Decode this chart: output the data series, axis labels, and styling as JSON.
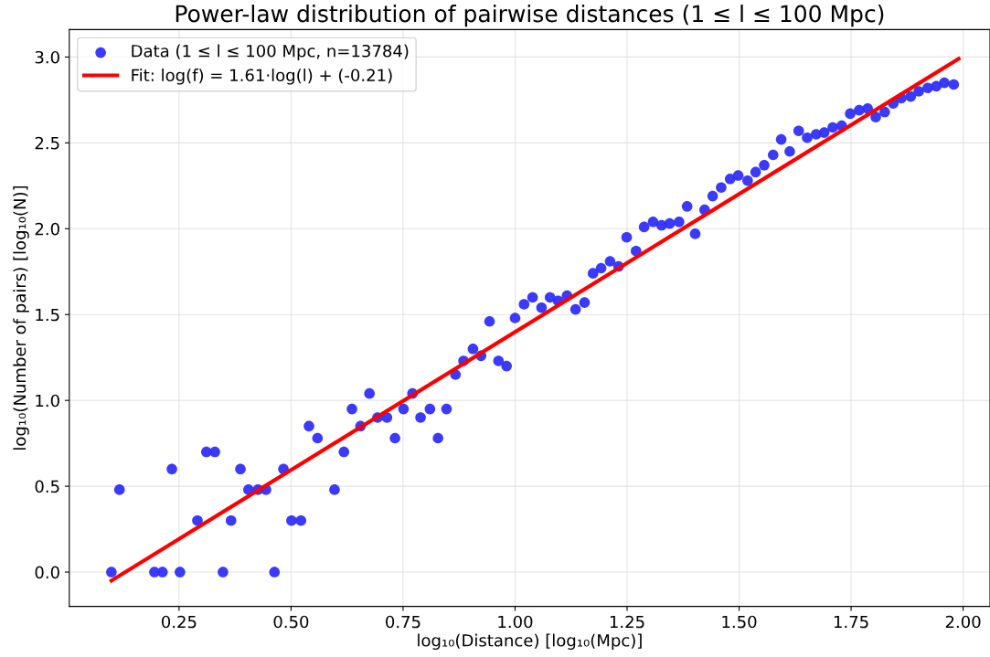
{
  "chart_data": {
    "type": "scatter",
    "title": "Power-law distribution of pairwise distances (1 ≤ l ≤ 100 Mpc)",
    "xlabel": "log₁₀(Distance) [log₁₀(Mpc)]",
    "ylabel": "log₁₀(Number of pairs) [log₁₀(N)]",
    "xlim": [
      0.005,
      2.06
    ],
    "ylim": [
      -0.2,
      3.16
    ],
    "xticks": [
      {
        "value": 0.25,
        "label": "0.25"
      },
      {
        "value": 0.5,
        "label": "0.50"
      },
      {
        "value": 0.75,
        "label": "0.75"
      },
      {
        "value": 1.0,
        "label": "1.00"
      },
      {
        "value": 1.25,
        "label": "1.25"
      },
      {
        "value": 1.5,
        "label": "1.50"
      },
      {
        "value": 1.75,
        "label": "1.75"
      },
      {
        "value": 2.0,
        "label": "2.00"
      }
    ],
    "yticks": [
      {
        "value": 0,
        "label": "0.0"
      },
      {
        "value": 0.5,
        "label": "0.5"
      },
      {
        "value": 1.0,
        "label": "1.0"
      },
      {
        "value": 1.5,
        "label": "1.5"
      },
      {
        "value": 2.0,
        "label": "2.0"
      },
      {
        "value": 2.5,
        "label": "2.5"
      },
      {
        "value": 3.0,
        "label": "3.0"
      }
    ],
    "grid": true,
    "legend": "top left",
    "marker": "circle",
    "series": [
      {
        "name": "Data (1 ≤ l ≤ 100 Mpc, n=13784)",
        "color": "#2f2ff8",
        "x": [
          0.099,
          0.117,
          0.195,
          0.213,
          0.234,
          0.252,
          0.291,
          0.311,
          0.33,
          0.348,
          0.366,
          0.387,
          0.405,
          0.426,
          0.444,
          0.463,
          0.483,
          0.501,
          0.522,
          0.54,
          0.559,
          0.597,
          0.618,
          0.636,
          0.655,
          0.675,
          0.693,
          0.714,
          0.732,
          0.751,
          0.771,
          0.789,
          0.81,
          0.828,
          0.847,
          0.867,
          0.885,
          0.906,
          0.924,
          0.943,
          0.963,
          0.981,
          1.0,
          1.02,
          1.039,
          1.059,
          1.078,
          1.096,
          1.116,
          1.135,
          1.155,
          1.174,
          1.192,
          1.212,
          1.231,
          1.249,
          1.27,
          1.288,
          1.308,
          1.327,
          1.345,
          1.366,
          1.384,
          1.402,
          1.423,
          1.441,
          1.46,
          1.48,
          1.498,
          1.519,
          1.537,
          1.556,
          1.576,
          1.594,
          1.613,
          1.633,
          1.652,
          1.672,
          1.69,
          1.709,
          1.729,
          1.748,
          1.768,
          1.787,
          1.805,
          1.825,
          1.844,
          1.862,
          1.883,
          1.901,
          1.921,
          1.94,
          1.958,
          1.979
        ],
        "values": [
          0,
          0.48,
          0,
          0,
          0.6,
          0,
          0.3,
          0.7,
          0.7,
          0,
          0.3,
          0.6,
          0.48,
          0.48,
          0.48,
          0,
          0.6,
          0.3,
          0.3,
          0.85,
          0.78,
          0.48,
          0.7,
          0.95,
          0.85,
          1.04,
          0.9,
          0.9,
          0.78,
          0.95,
          1.04,
          0.9,
          0.95,
          0.78,
          0.95,
          1.15,
          1.23,
          1.3,
          1.26,
          1.46,
          1.23,
          1.2,
          1.48,
          1.56,
          1.6,
          1.54,
          1.6,
          1.58,
          1.61,
          1.53,
          1.57,
          1.74,
          1.77,
          1.81,
          1.78,
          1.95,
          1.87,
          2.01,
          2.04,
          2.02,
          2.03,
          2.04,
          2.13,
          1.97,
          2.11,
          2.19,
          2.24,
          2.29,
          2.31,
          2.28,
          2.33,
          2.37,
          2.43,
          2.52,
          2.45,
          2.57,
          2.53,
          2.55,
          2.56,
          2.59,
          2.6,
          2.67,
          2.69,
          2.7,
          2.65,
          2.68,
          2.73,
          2.76,
          2.77,
          2.8,
          2.82,
          2.83,
          2.85,
          2.84
        ]
      },
      {
        "name": "Fit: log(f) = 1.61·log(l) + (-0.21)",
        "type": "line",
        "color": "#ff0000",
        "x": [
          0.099,
          1.99
        ],
        "values": [
          -0.05,
          2.99
        ],
        "marker": "none",
        "line_style": "solid"
      }
    ]
  }
}
